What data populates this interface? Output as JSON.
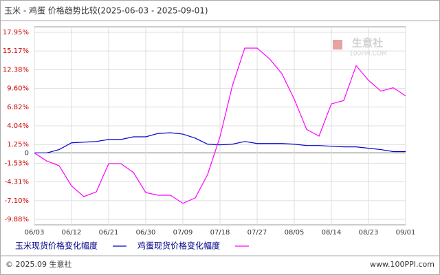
{
  "chart_data": {
    "type": "line",
    "title": "玉米 - 鸡蛋 价格趋势比较(2025-06-03 - 2025-09-01)",
    "categories": [
      "06/03",
      null,
      null,
      "06/12",
      null,
      null,
      "06/21",
      null,
      null,
      "06/30",
      null,
      null,
      "07/09",
      null,
      null,
      "07/18",
      null,
      null,
      "07/27",
      null,
      null,
      "08/05",
      null,
      null,
      "08/14",
      null,
      null,
      "08/23",
      null,
      null,
      "09/01"
    ],
    "series": [
      {
        "name": "玉米现货价格变化幅度",
        "color": "#0000cc",
        "values": [
          0,
          0,
          0.5,
          1.5,
          1.6,
          1.7,
          2.0,
          2.0,
          2.4,
          2.4,
          2.9,
          3.0,
          2.8,
          2.2,
          1.3,
          1.2,
          1.3,
          1.7,
          1.4,
          1.4,
          1.4,
          1.3,
          1.1,
          1.1,
          1.0,
          0.9,
          0.9,
          0.7,
          0.5,
          0.2,
          0.2
        ]
      },
      {
        "name": "鸡蛋现货价格变化幅度",
        "color": "#ff00ff",
        "values": [
          0,
          -1.2,
          -1.9,
          -4.9,
          -6.5,
          -5.8,
          -1.6,
          -1.6,
          -2.9,
          -5.9,
          -6.3,
          -6.3,
          -7.5,
          -6.7,
          -3.2,
          2.4,
          10.0,
          15.6,
          15.6,
          14.0,
          11.8,
          8.0,
          3.5,
          2.5,
          7.3,
          7.8,
          13.0,
          10.8,
          9.2,
          9.7,
          8.5
        ]
      }
    ],
    "ylim": [
      -9.88,
      17.95
    ],
    "yticks": [
      {
        "value": 17.95,
        "label": "17.95%"
      },
      {
        "value": 15.17,
        "label": "15.17%"
      },
      {
        "value": 12.38,
        "label": "12.38%"
      },
      {
        "value": 9.6,
        "label": "9.60%"
      },
      {
        "value": 6.82,
        "label": "6.82%"
      },
      {
        "value": 4.04,
        "label": "4.04%"
      },
      {
        "value": 1.25,
        "label": "1.25%"
      },
      0,
      {
        "value": -1.53,
        "label": "-1.53%"
      },
      {
        "value": -4.31,
        "label": "-4.31%"
      },
      {
        "value": -7.1,
        "label": "-7.10%"
      },
      {
        "value": -9.88,
        "label": "-9.88%"
      }
    ],
    "grid": true,
    "watermark": {
      "name": "生意社",
      "url": "100PPI.COM"
    },
    "footer": {
      "left": "© 2025.09 生意社",
      "right": "www.100PPI.com"
    }
  }
}
